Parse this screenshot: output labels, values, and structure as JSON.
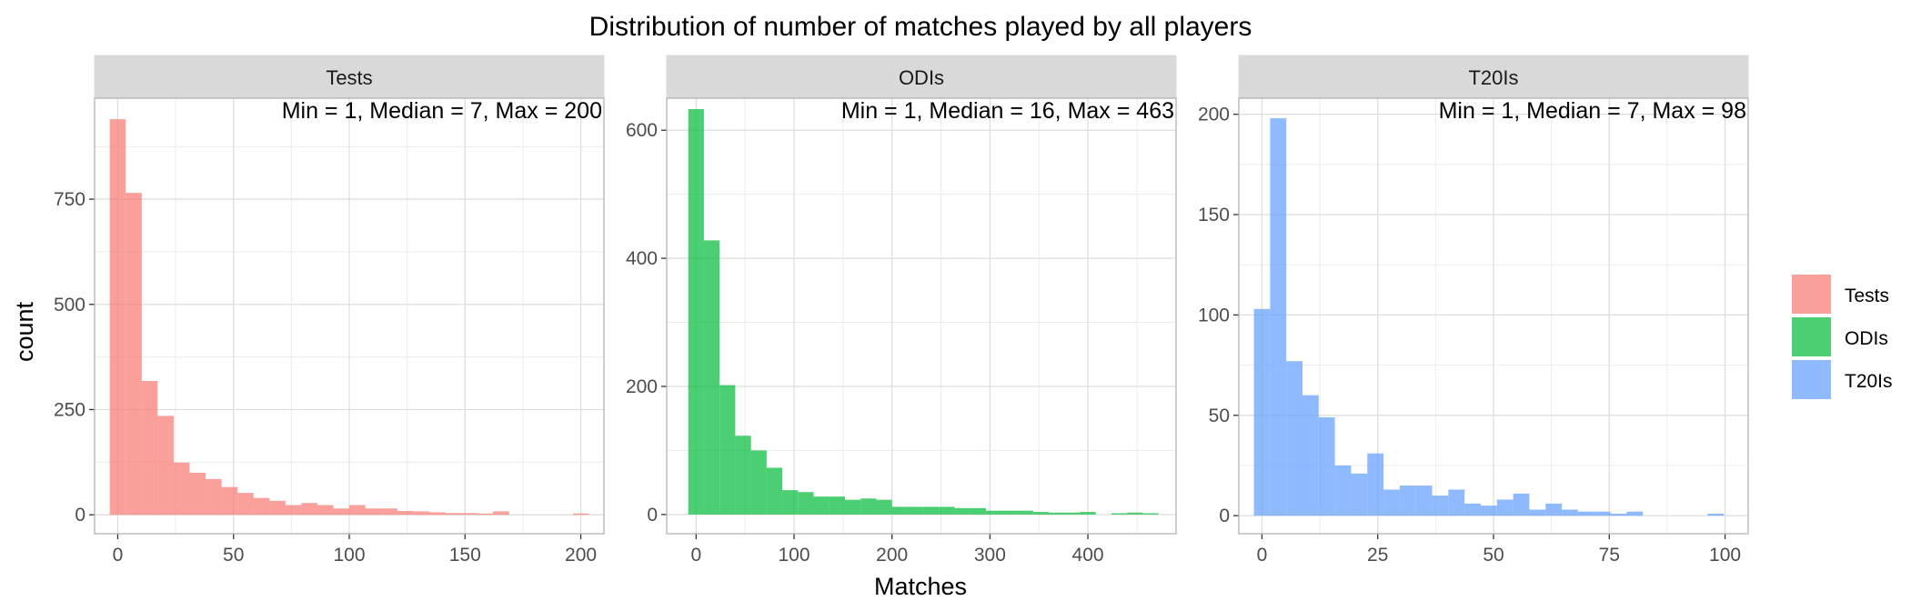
{
  "title": "Distribution of number of matches played by all players",
  "xlabel": "Matches",
  "ylabel": "count",
  "legend": {
    "items": [
      {
        "label": "Tests",
        "color": "#F8766D"
      },
      {
        "label": "ODIs",
        "color": "#00BA38"
      },
      {
        "label": "T20Is",
        "color": "#619CFF"
      }
    ]
  },
  "chart_data": [
    {
      "type": "bar",
      "panel": "Tests",
      "annotation": "Min = 1, Median = 7, Max = 200",
      "color": "#F8766D",
      "xlim": [
        -10,
        210
      ],
      "ylim": [
        -45,
        990
      ],
      "x_ticks": [
        0,
        50,
        100,
        150,
        200
      ],
      "y_ticks": [
        0,
        250,
        500,
        750
      ],
      "bin_width": 6.9,
      "bins": [
        {
          "x": 0,
          "count": 940
        },
        {
          "x": 6.9,
          "count": 765
        },
        {
          "x": 13.8,
          "count": 318
        },
        {
          "x": 20.7,
          "count": 235
        },
        {
          "x": 27.6,
          "count": 124
        },
        {
          "x": 34.5,
          "count": 100
        },
        {
          "x": 41.4,
          "count": 85
        },
        {
          "x": 48.3,
          "count": 66
        },
        {
          "x": 55.2,
          "count": 52
        },
        {
          "x": 62.1,
          "count": 40
        },
        {
          "x": 69.0,
          "count": 33
        },
        {
          "x": 75.9,
          "count": 23
        },
        {
          "x": 82.8,
          "count": 28
        },
        {
          "x": 89.7,
          "count": 23
        },
        {
          "x": 96.6,
          "count": 15
        },
        {
          "x": 103.5,
          "count": 23
        },
        {
          "x": 110.4,
          "count": 15
        },
        {
          "x": 117.3,
          "count": 15
        },
        {
          "x": 124.2,
          "count": 9
        },
        {
          "x": 131.1,
          "count": 8
        },
        {
          "x": 138.0,
          "count": 6
        },
        {
          "x": 144.9,
          "count": 4
        },
        {
          "x": 151.8,
          "count": 4
        },
        {
          "x": 158.7,
          "count": 3
        },
        {
          "x": 165.6,
          "count": 8
        },
        {
          "x": 172.5,
          "count": 0
        },
        {
          "x": 179.4,
          "count": 0
        },
        {
          "x": 186.3,
          "count": 0
        },
        {
          "x": 193.2,
          "count": 0
        },
        {
          "x": 200.1,
          "count": 3
        }
      ]
    },
    {
      "type": "bar",
      "panel": "ODIs",
      "annotation": "Min = 1, Median = 16, Max = 463",
      "color": "#00BA38",
      "xlim": [
        -30,
        490
      ],
      "ylim": [
        -30,
        650
      ],
      "x_ticks": [
        0,
        100,
        200,
        300,
        400
      ],
      "y_ticks": [
        0,
        200,
        400,
        600
      ],
      "bin_width": 16,
      "bins": [
        {
          "x": 0,
          "count": 633
        },
        {
          "x": 16,
          "count": 428
        },
        {
          "x": 32,
          "count": 202
        },
        {
          "x": 48,
          "count": 123
        },
        {
          "x": 64,
          "count": 100
        },
        {
          "x": 80,
          "count": 73
        },
        {
          "x": 96,
          "count": 38
        },
        {
          "x": 112,
          "count": 35
        },
        {
          "x": 128,
          "count": 28
        },
        {
          "x": 144,
          "count": 28
        },
        {
          "x": 160,
          "count": 23
        },
        {
          "x": 176,
          "count": 25
        },
        {
          "x": 192,
          "count": 23
        },
        {
          "x": 208,
          "count": 12
        },
        {
          "x": 224,
          "count": 12
        },
        {
          "x": 240,
          "count": 12
        },
        {
          "x": 256,
          "count": 12
        },
        {
          "x": 272,
          "count": 10
        },
        {
          "x": 288,
          "count": 10
        },
        {
          "x": 304,
          "count": 6
        },
        {
          "x": 320,
          "count": 6
        },
        {
          "x": 336,
          "count": 6
        },
        {
          "x": 352,
          "count": 4
        },
        {
          "x": 368,
          "count": 3
        },
        {
          "x": 384,
          "count": 3
        },
        {
          "x": 400,
          "count": 4
        },
        {
          "x": 416,
          "count": 0
        },
        {
          "x": 432,
          "count": 2
        },
        {
          "x": 448,
          "count": 3
        },
        {
          "x": 464,
          "count": 2
        }
      ]
    },
    {
      "type": "bar",
      "panel": "T20Is",
      "annotation": "Min = 1, Median = 7, Max = 98",
      "color": "#619CFF",
      "xlim": [
        -5,
        105
      ],
      "ylim": [
        -9,
        208
      ],
      "x_ticks": [
        0,
        25,
        50,
        75,
        100
      ],
      "y_ticks": [
        0,
        50,
        100,
        150,
        200
      ],
      "bin_width": 3.5,
      "bins": [
        {
          "x": 0,
          "count": 103
        },
        {
          "x": 3.5,
          "count": 198
        },
        {
          "x": 7,
          "count": 77
        },
        {
          "x": 10.5,
          "count": 60
        },
        {
          "x": 14,
          "count": 49
        },
        {
          "x": 17.5,
          "count": 25
        },
        {
          "x": 21,
          "count": 21
        },
        {
          "x": 24.5,
          "count": 31
        },
        {
          "x": 28,
          "count": 13
        },
        {
          "x": 31.5,
          "count": 15
        },
        {
          "x": 35,
          "count": 15
        },
        {
          "x": 38.5,
          "count": 10
        },
        {
          "x": 42,
          "count": 13
        },
        {
          "x": 45.5,
          "count": 6
        },
        {
          "x": 49,
          "count": 5
        },
        {
          "x": 52.5,
          "count": 8
        },
        {
          "x": 56,
          "count": 11
        },
        {
          "x": 59.5,
          "count": 3
        },
        {
          "x": 63,
          "count": 6
        },
        {
          "x": 66.5,
          "count": 3
        },
        {
          "x": 70,
          "count": 2
        },
        {
          "x": 73.5,
          "count": 2
        },
        {
          "x": 77,
          "count": 1
        },
        {
          "x": 80.5,
          "count": 2
        },
        {
          "x": 84,
          "count": 0
        },
        {
          "x": 87.5,
          "count": 0
        },
        {
          "x": 91,
          "count": 0
        },
        {
          "x": 94.5,
          "count": 0
        },
        {
          "x": 98,
          "count": 1
        }
      ]
    }
  ]
}
